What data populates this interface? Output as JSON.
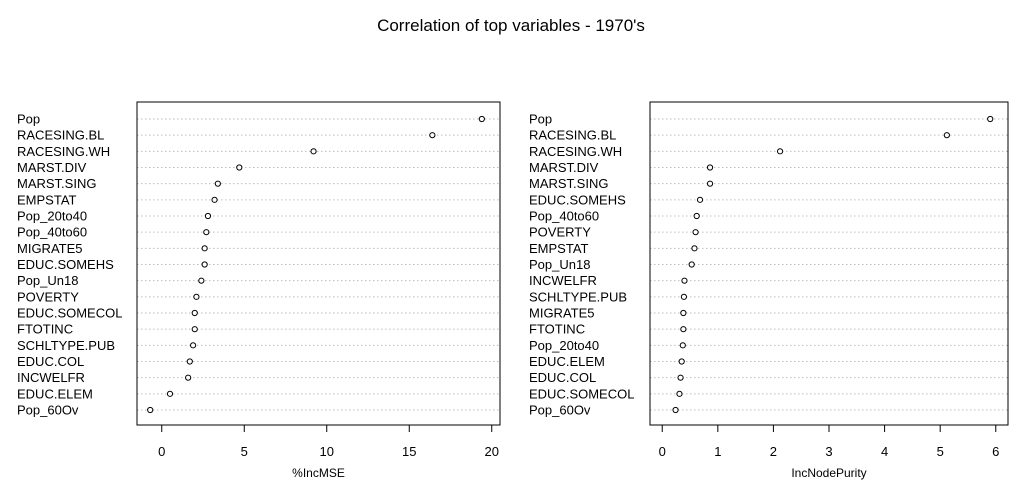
{
  "title": "Correlation of top variables - 1970's",
  "chart_data": [
    {
      "type": "scatter",
      "xlabel": "%IncMSE",
      "xlim": [
        -1.5,
        20.5
      ],
      "xticks": [
        0,
        5,
        10,
        15,
        20
      ],
      "grid": "horizontal-dotted",
      "categories": [
        "Pop",
        "RACESING.BL",
        "RACESING.WH",
        "MARST.DIV",
        "MARST.SING",
        "EMPSTAT",
        "Pop_20to40",
        "Pop_40to60",
        "MIGRATE5",
        "EDUC.SOMEHS",
        "Pop_Un18",
        "POVERTY",
        "EDUC.SOMECOL",
        "FTOTINC",
        "SCHLTYPE.PUB",
        "EDUC.COL",
        "INCWELFR",
        "EDUC.ELEM",
        "Pop_60Ov"
      ],
      "values": [
        19.4,
        16.4,
        9.2,
        4.7,
        3.4,
        3.2,
        2.8,
        2.7,
        2.6,
        2.6,
        2.4,
        2.1,
        2.0,
        2.0,
        1.9,
        1.7,
        1.6,
        0.5,
        -0.7
      ]
    },
    {
      "type": "scatter",
      "xlabel": "IncNodePurity",
      "xlim": [
        -0.22,
        6.22
      ],
      "xticks": [
        0,
        1,
        2,
        3,
        4,
        5,
        6
      ],
      "grid": "horizontal-dotted",
      "categories": [
        "Pop",
        "RACESING.BL",
        "RACESING.WH",
        "MARST.DIV",
        "MARST.SING",
        "EDUC.SOMEHS",
        "Pop_40to60",
        "POVERTY",
        "EMPSTAT",
        "Pop_Un18",
        "INCWELFR",
        "SCHLTYPE.PUB",
        "MIGRATE5",
        "FTOTINC",
        "Pop_20to40",
        "EDUC.ELEM",
        "EDUC.COL",
        "EDUC.SOMECOL",
        "Pop_60Ov"
      ],
      "values": [
        5.9,
        5.12,
        2.12,
        0.86,
        0.86,
        0.68,
        0.62,
        0.6,
        0.58,
        0.53,
        0.4,
        0.39,
        0.38,
        0.38,
        0.37,
        0.35,
        0.33,
        0.31,
        0.24
      ]
    }
  ]
}
